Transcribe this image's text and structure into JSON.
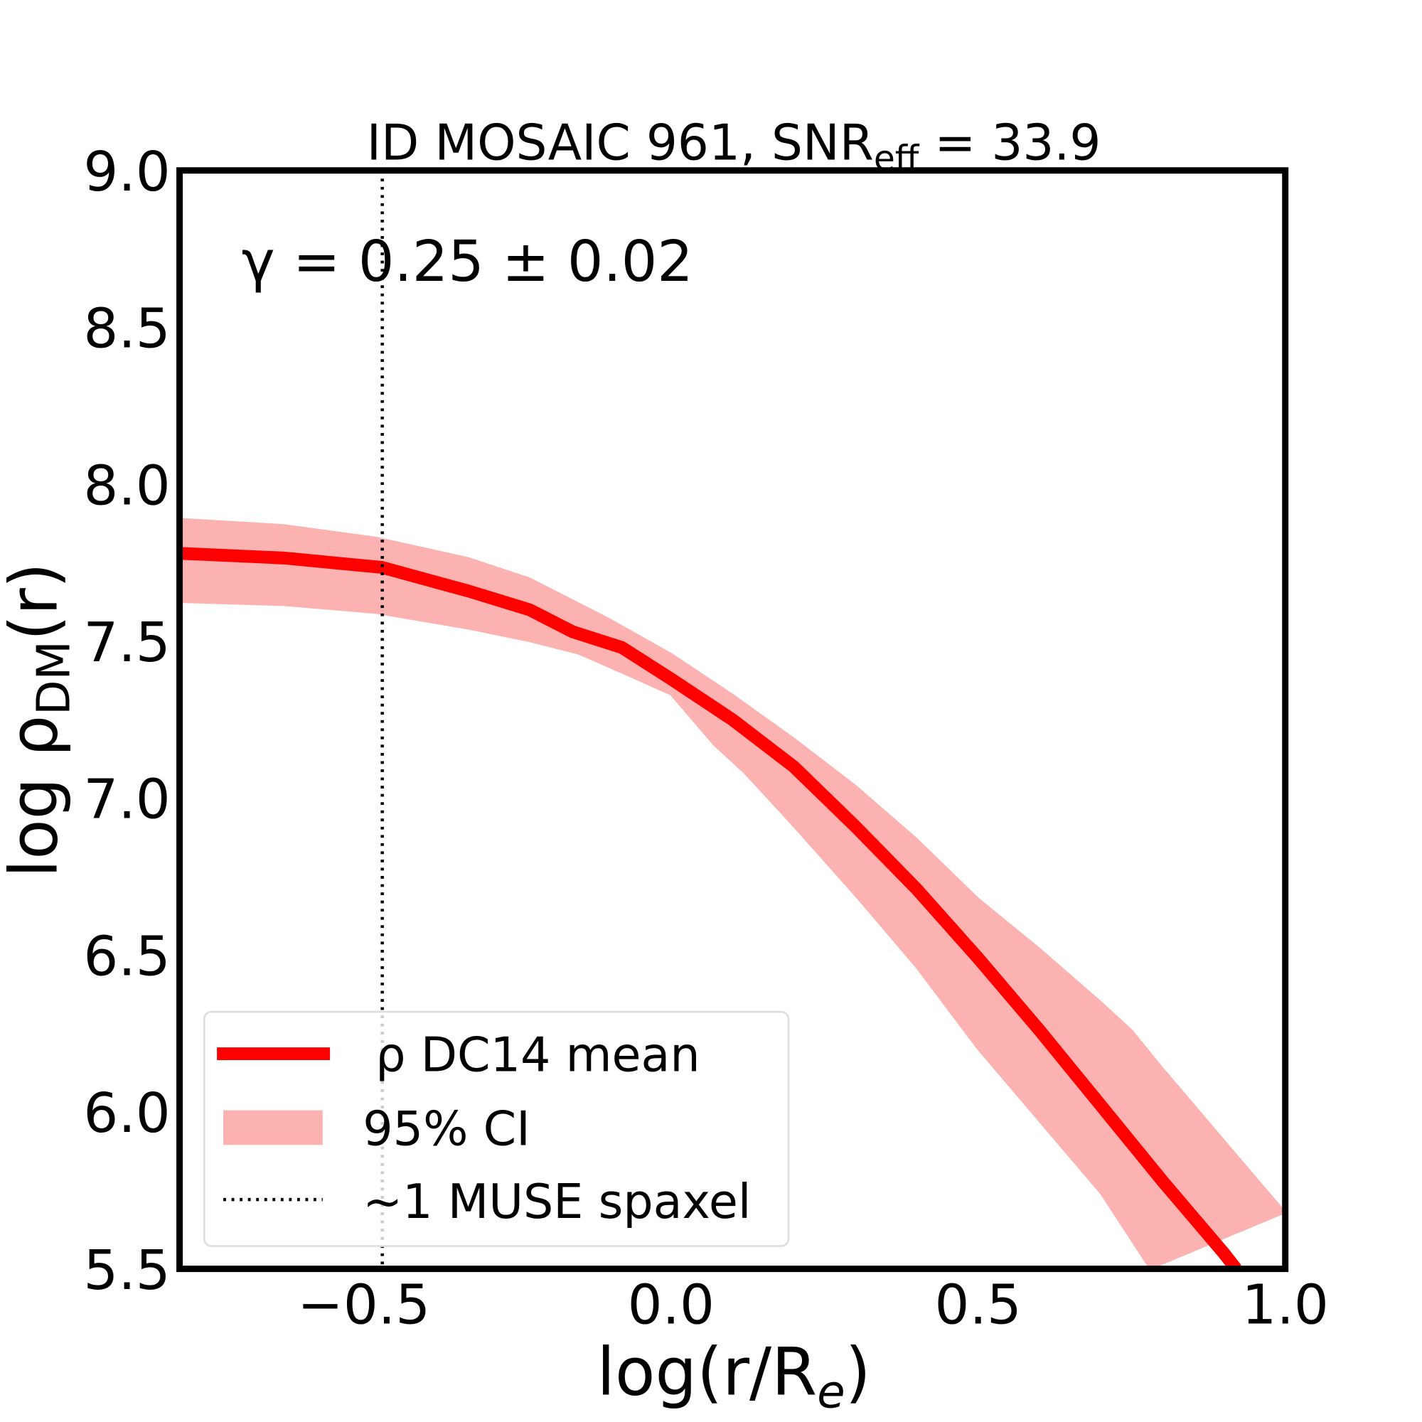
{
  "chart_data": {
    "type": "line",
    "title": "ID MOSAIC 961, SNR",
    "title_sub": "eff",
    "title_tail": " = 33.9",
    "annotation": "γ = 0.25 ± 0.02",
    "xlabel": "log(r/R",
    "xlabel_sub": "e",
    "xlabel_tail": ")",
    "ylabel": "log ρ",
    "ylabel_sub": "DM",
    "ylabel_tail": "(r)",
    "xlim": [
      -0.8,
      1.0
    ],
    "ylim": [
      5.5,
      9.0
    ],
    "xticks": [
      "−0.5",
      "0.0",
      "0.5",
      "1.0"
    ],
    "xtick_values": [
      -0.5,
      0.0,
      0.5,
      1.0
    ],
    "yticks": [
      "5.5",
      "6.0",
      "6.5",
      "7.0",
      "7.5",
      "8.0",
      "8.5",
      "9.0"
    ],
    "ytick_values": [
      5.5,
      6.0,
      6.5,
      7.0,
      7.5,
      8.0,
      8.5,
      9.0
    ],
    "grid": false,
    "legend_position": "lower-left",
    "colors": {
      "mean": "#ff0000",
      "ci": "#fdb2b2",
      "vline": "#000000"
    },
    "series": [
      {
        "name": "ρ DC14 mean",
        "x": [
          -0.8,
          -0.63,
          -0.47,
          -0.33,
          -0.23,
          -0.16,
          -0.08,
          0.0,
          0.1,
          0.2,
          0.3,
          0.4,
          0.5,
          0.6,
          0.7,
          0.8,
          0.9,
          0.92
        ],
        "y": [
          7.78,
          7.765,
          7.735,
          7.66,
          7.6,
          7.53,
          7.48,
          7.38,
          7.25,
          7.1,
          6.91,
          6.71,
          6.49,
          6.26,
          6.02,
          5.78,
          5.55,
          5.5
        ]
      }
    ],
    "band": {
      "name": "95% CI",
      "upper_x": [
        -0.8,
        -0.63,
        -0.48,
        -0.33,
        -0.23,
        -0.1,
        0.0,
        0.1,
        0.2,
        0.3,
        0.4,
        0.5,
        0.6,
        0.7,
        0.75,
        0.8,
        0.9,
        1.0
      ],
      "upper_y": [
        7.89,
        7.87,
        7.83,
        7.765,
        7.7,
        7.57,
        7.46,
        7.33,
        7.19,
        7.04,
        6.87,
        6.68,
        6.52,
        6.35,
        6.26,
        6.14,
        5.91,
        5.68
      ],
      "lower_x": [
        -0.8,
        -0.63,
        -0.48,
        -0.33,
        -0.23,
        -0.15,
        -0.08,
        0.0,
        0.07,
        0.12,
        0.2,
        0.3,
        0.4,
        0.5,
        0.6,
        0.7,
        0.78
      ],
      "lower_y": [
        7.625,
        7.615,
        7.59,
        7.54,
        7.5,
        7.46,
        7.4,
        7.33,
        7.17,
        7.08,
        6.91,
        6.69,
        6.46,
        6.2,
        5.97,
        5.74,
        5.5
      ]
    },
    "vline": {
      "name": "~1 MUSE spaxel",
      "x": -0.47
    }
  }
}
